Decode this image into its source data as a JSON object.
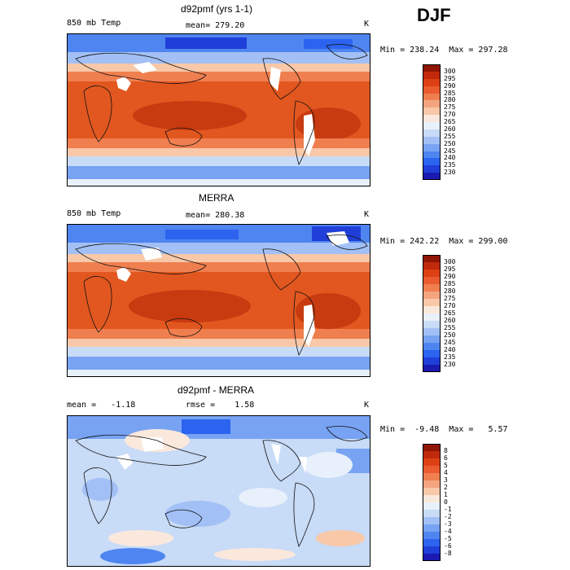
{
  "season": "DJF",
  "palettes": {
    "temp": [
      "#1a1ab0",
      "#1f3fd8",
      "#2c63ef",
      "#4f85f0",
      "#78a3f3",
      "#a2c0f5",
      "#c8dbf7",
      "#e8f0fb",
      "#fbe8dc",
      "#f8c8a8",
      "#f4a580",
      "#f07f50",
      "#ea5b30",
      "#dd4015",
      "#c02a0a",
      "#8f1505"
    ],
    "diff": [
      "#1a1ab0",
      "#1f3fd8",
      "#2c63ef",
      "#4f85f0",
      "#78a3f3",
      "#a2c0f5",
      "#c8dbf7",
      "#e8f0fb",
      "#fbe8dc",
      "#f8c8a8",
      "#f4a580",
      "#f07f50",
      "#ea5b30",
      "#dd4015",
      "#c02a0a",
      "#8f1505"
    ]
  },
  "chart_data": [
    {
      "type": "heatmap",
      "title": "d92pmf (yrs 1-1)",
      "variable": "850 mb Temp",
      "mean_text": "mean= 279.20",
      "unit": "K",
      "min_text": "Min = 238.24",
      "max_text": "Max = 297.28",
      "min": 238.24,
      "max": 297.28,
      "mean": 279.2,
      "colorbar_ticks": [
        "300",
        "295",
        "290",
        "285",
        "280",
        "275",
        "270",
        "265",
        "260",
        "255",
        "250",
        "245",
        "240",
        "235",
        "230"
      ]
    },
    {
      "type": "heatmap",
      "title": "MERRA",
      "variable": "850 mb Temp",
      "mean_text": "mean= 280.38",
      "unit": "K",
      "min_text": "Min = 242.22",
      "max_text": "Max = 299.00",
      "min": 242.22,
      "max": 299.0,
      "mean": 280.38,
      "colorbar_ticks": [
        "300",
        "295",
        "290",
        "285",
        "280",
        "275",
        "270",
        "265",
        "260",
        "255",
        "250",
        "245",
        "240",
        "235",
        "230"
      ]
    },
    {
      "type": "heatmap",
      "title": "d92pmf - MERRA",
      "mean_text": "mean =   -1.18",
      "rmse_text": "rmse =    1.58",
      "unit": "K",
      "min_text": "Min =  -9.48",
      "max_text": "Max =   5.57",
      "min": -9.48,
      "max": 5.57,
      "mean": -1.18,
      "rmse": 1.58,
      "colorbar_ticks": [
        "8",
        "6",
        "5",
        "4",
        "3",
        "2",
        "1",
        "0",
        "-1",
        "-2",
        "-3",
        "-4",
        "-5",
        "-6",
        "-8"
      ]
    }
  ]
}
